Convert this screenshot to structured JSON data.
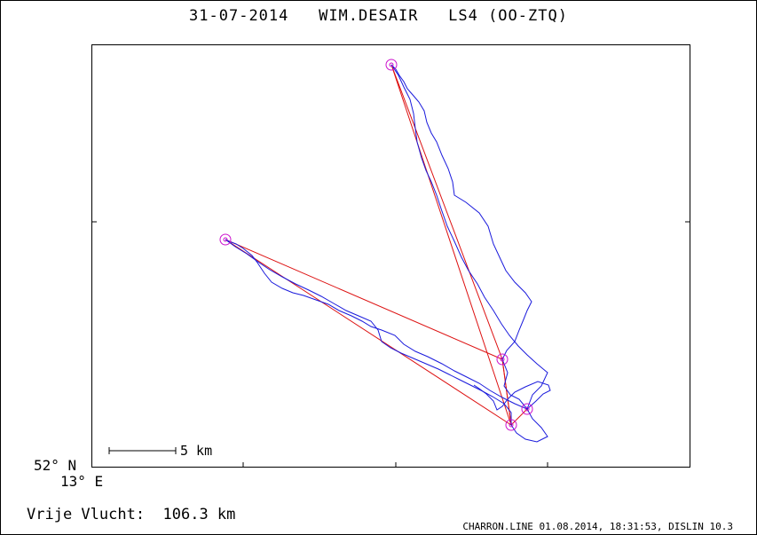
{
  "header": {
    "title": "31-07-2014   WIM.DESAIR   LS4 (OO-ZTQ)"
  },
  "map": {
    "latitude_label": "52° N",
    "longitude_label": "13° E",
    "scale_label": "5 km",
    "colors": {
      "track": "#1a1adc",
      "task": "#dd1111",
      "turnpoint": "#cc11cc"
    },
    "turnpoint_count": 5
  },
  "summary": {
    "free_flight": "Vrije Vlucht:  106.3 km"
  },
  "footer": {
    "credit": "CHARRON.LINE 01.08.2014, 18:31:53, DISLIN 10.3"
  }
}
